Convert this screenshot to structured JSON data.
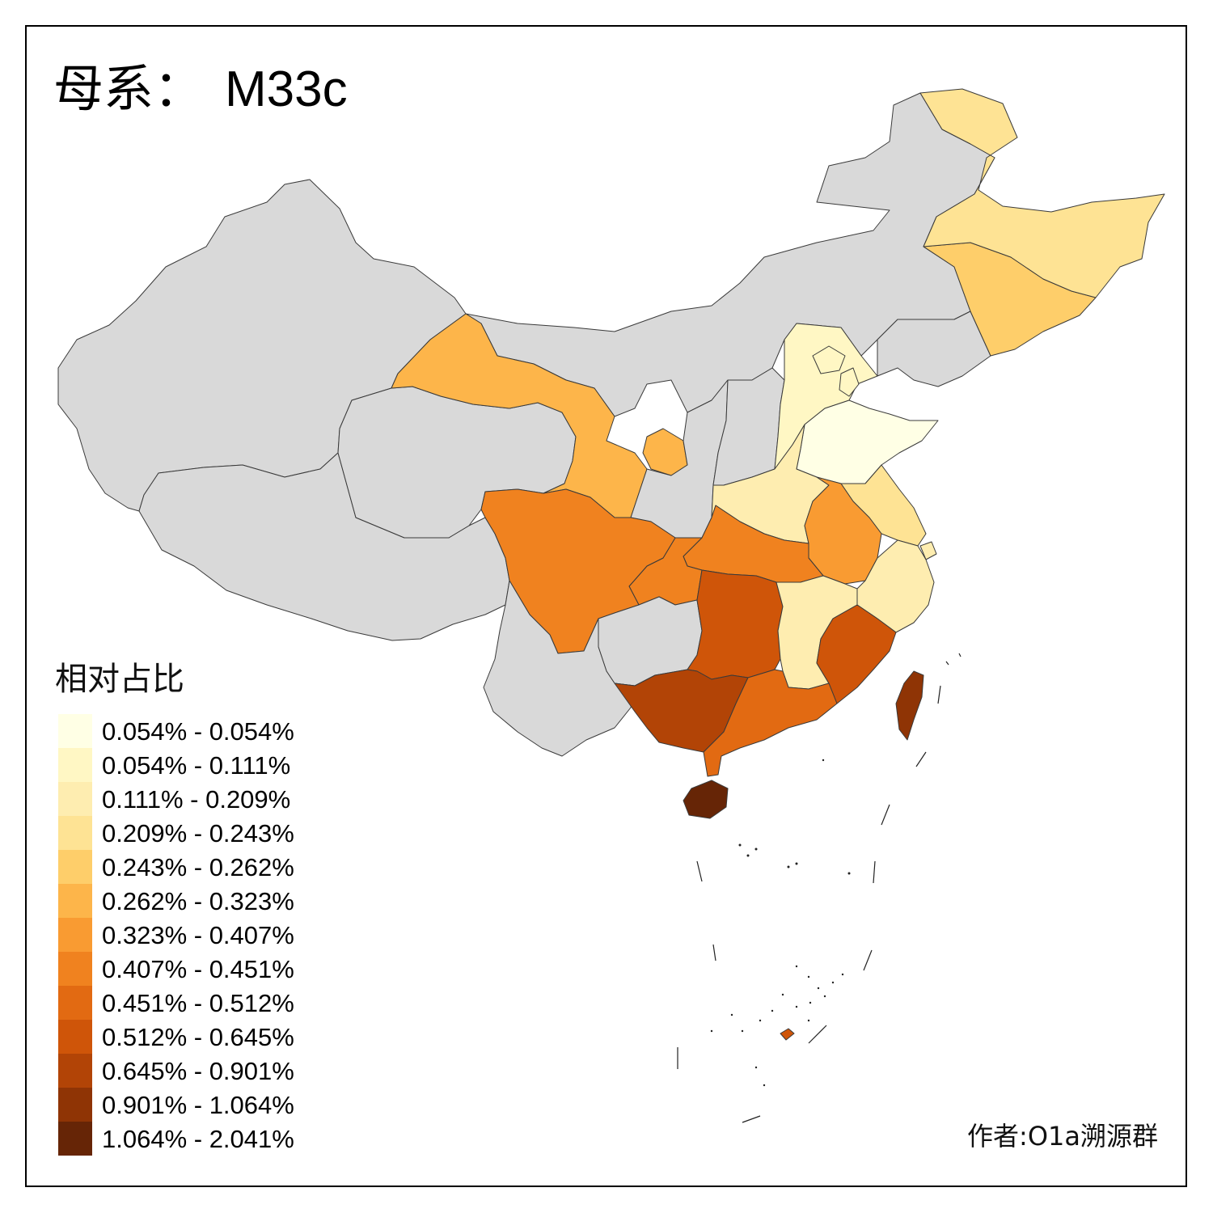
{
  "title": {
    "main": "母系：",
    "haplogroup": "M33c"
  },
  "legend": {
    "title": "相对占比",
    "items": [
      {
        "label": "0.054% - 0.054%",
        "color": "#ffffe5"
      },
      {
        "label": "0.054% - 0.111%",
        "color": "#fff7c4"
      },
      {
        "label": "0.111% - 0.209%",
        "color": "#feedb0"
      },
      {
        "label": "0.209% - 0.243%",
        "color": "#fee394"
      },
      {
        "label": "0.243% - 0.262%",
        "color": "#fece6a"
      },
      {
        "label": "0.262% - 0.323%",
        "color": "#fdb54a"
      },
      {
        "label": "0.323% - 0.407%",
        "color": "#f99b32"
      },
      {
        "label": "0.407% - 0.451%",
        "color": "#f0821f"
      },
      {
        "label": "0.451% - 0.512%",
        "color": "#e26a12"
      },
      {
        "label": "0.512% - 0.645%",
        "color": "#cf5509"
      },
      {
        "label": "0.645% - 0.901%",
        "color": "#b24406"
      },
      {
        "label": "0.901% - 1.064%",
        "color": "#8f3405"
      },
      {
        "label": "1.064% - 2.041%",
        "color": "#662506"
      }
    ]
  },
  "no_data_color": "#d9d9d9",
  "author": "作者:O1a溯源群",
  "chart_data": {
    "type": "choropleth",
    "title": "母系： M33c",
    "legend_title": "相对占比",
    "unit": "%",
    "bins": [
      "0.054% - 0.054%",
      "0.054% - 0.111%",
      "0.111% - 0.209%",
      "0.209% - 0.243%",
      "0.243% - 0.262%",
      "0.262% - 0.323%",
      "0.323% - 0.407%",
      "0.407% - 0.451%",
      "0.451% - 0.512%",
      "0.512% - 0.645%",
      "0.645% - 0.901%",
      "0.901% - 1.064%",
      "1.064% - 2.041%"
    ],
    "regions": [
      {
        "region": "heilongjiang",
        "bin": 3
      },
      {
        "region": "jilin",
        "bin": 4
      },
      {
        "region": "liaoning",
        "bin": null
      },
      {
        "region": "inner-mongolia",
        "bin": null
      },
      {
        "region": "xinjiang",
        "bin": null
      },
      {
        "region": "tibet",
        "bin": null
      },
      {
        "region": "qinghai",
        "bin": null
      },
      {
        "region": "gansu",
        "bin": 5
      },
      {
        "region": "ningxia",
        "bin": 5
      },
      {
        "region": "shaanxi",
        "bin": null
      },
      {
        "region": "shanxi",
        "bin": null
      },
      {
        "region": "hebei",
        "bin": 1
      },
      {
        "region": "beijing",
        "bin": 1
      },
      {
        "region": "tianjin",
        "bin": 1
      },
      {
        "region": "shandong",
        "bin": 0
      },
      {
        "region": "henan",
        "bin": 2
      },
      {
        "region": "jiangsu",
        "bin": 3
      },
      {
        "region": "anhui",
        "bin": 6
      },
      {
        "region": "shanghai",
        "bin": 2
      },
      {
        "region": "zhejiang",
        "bin": 2
      },
      {
        "region": "hubei",
        "bin": 7
      },
      {
        "region": "chongqing",
        "bin": 7
      },
      {
        "region": "sichuan",
        "bin": 7
      },
      {
        "region": "guizhou",
        "bin": null
      },
      {
        "region": "yunnan",
        "bin": null
      },
      {
        "region": "hunan",
        "bin": 9
      },
      {
        "region": "jiangxi",
        "bin": 2
      },
      {
        "region": "fujian",
        "bin": 9
      },
      {
        "region": "guangxi",
        "bin": 10
      },
      {
        "region": "guangdong",
        "bin": 8
      },
      {
        "region": "hainan",
        "bin": 12
      },
      {
        "region": "taiwan",
        "bin": 11
      },
      {
        "region": "south-china-sea-islands",
        "bin": 9
      }
    ]
  }
}
